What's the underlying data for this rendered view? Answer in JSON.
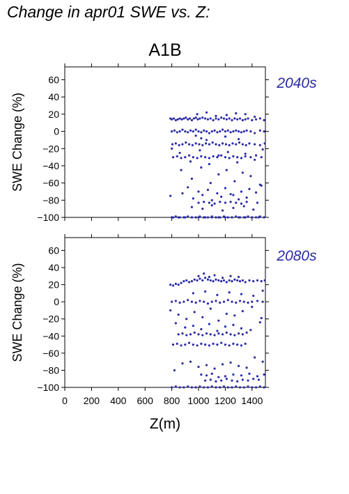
{
  "page": {
    "title": "Change in apr01 SWE vs. Z:"
  },
  "chart_data": {
    "type": "scatter",
    "scenario_title": "A1B",
    "xlabel": "Z(m)",
    "ylabel": "SWE Change (%)",
    "xlim": [
      0,
      1500
    ],
    "ylim": [
      -100,
      75
    ],
    "x_ticks": [
      0,
      200,
      400,
      600,
      800,
      1000,
      1200,
      1400
    ],
    "y_ticks": [
      -100,
      -80,
      -60,
      -40,
      -20,
      0,
      20,
      40,
      60
    ],
    "grid": false,
    "point_color": "#2a2aa8",
    "label_color": "#2a2aa8",
    "panels": [
      {
        "label": "2040s",
        "points_note": "clusters ~15, 0, -15, -30 and -100 %, scattered between -100 and 20 % for Z 790–1500 m",
        "series": [
          {
            "x": [
              790,
              800,
              815,
              830,
              845,
              860,
              875,
              890,
              905,
              920,
              935,
              950,
              965,
              980,
              995,
              1010,
              1030,
              1050,
              1070,
              1090,
              1110,
              1130,
              1150,
              1170,
              1190,
              1210,
              1230,
              1250,
              1270,
              1290,
              1310,
              1330,
              1350,
              1370,
              1400,
              1430,
              1460,
              1490,
              800,
              820,
              840,
              860,
              880,
              900,
              920,
              940,
              960,
              980,
              1000,
              1020,
              1040,
              1060,
              1080,
              1100,
              1120,
              1140,
              1160,
              1180,
              1200,
              1220,
              1240,
              1260,
              1280,
              1300,
              1320,
              1340,
              1360,
              1390,
              1420,
              1460,
              1490,
              805,
              830,
              855,
              880,
              905,
              930,
              955,
              980,
              1005,
              1030,
              1055,
              1080,
              1105,
              1130,
              1155,
              1180,
              1205,
              1230,
              1255,
              1280,
              1305,
              1330,
              1355,
              1380,
              1420,
              1460,
              1495,
              810,
              840,
              870,
              900,
              930,
              960,
              990,
              1020,
              1050,
              1080,
              1110,
              1140,
              1170,
              1200,
              1230,
              1260,
              1290,
              1320,
              1350,
              1390,
              1430,
              1470,
              800,
              830,
              860,
              890,
              920,
              950,
              980,
              1010,
              1040,
              1070,
              1100,
              1130,
              1160,
              1190,
              1220,
              1250,
              1280,
              1310,
              1340,
              1370,
              1400,
              1430,
              1460,
              1490,
              810,
              850,
              900,
              950,
              1000,
              1050,
              1100,
              1150,
              1200,
              1250,
              1300,
              1350,
              1400,
              1450,
              1000,
              1040,
              1080,
              1120,
              1160,
              1200,
              1240,
              1280,
              1320,
              1360,
              1440,
              870,
              950,
              1020,
              1090,
              1150,
              1210,
              1270,
              1330,
              1390,
              1460,
              920,
              1000,
              1070,
              1140,
              1200,
              1260,
              1320,
              1380,
              1470,
              790,
              880,
              960,
              1030,
              1100,
              1170,
              1240,
              1300,
              1360,
              1430,
              800,
              860,
              940,
              1010,
              1080,
              1150,
              1220,
              1290,
              1350,
              1420,
              1480,
              950,
              1030,
              1100,
              1180,
              1260,
              1340,
              1410,
              990,
              1060,
              1130,
              1210,
              1280,
              1350,
              1420,
              980,
              1020,
              1060,
              1200,
              1300
            ],
            "y": [
              15,
              14,
              15,
              13,
              14,
              15,
              14,
              15,
              16,
              14,
              15,
              13,
              15,
              16,
              14,
              15,
              16,
              15,
              14,
              15,
              13,
              15,
              14,
              16,
              15,
              14,
              15,
              13,
              15,
              14,
              15,
              13,
              14,
              15,
              13,
              14,
              15,
              13,
              0,
              1,
              -1,
              0,
              2,
              0,
              -1,
              1,
              0,
              2,
              0,
              -1,
              1,
              0,
              -2,
              0,
              1,
              -1,
              0,
              2,
              0,
              1,
              -1,
              0,
              1,
              0,
              -1,
              0,
              1,
              0,
              -2,
              1,
              0,
              -15,
              -14,
              -16,
              -15,
              -13,
              -15,
              -16,
              -14,
              -15,
              -16,
              -14,
              -15,
              -13,
              -15,
              -16,
              -14,
              -15,
              -16,
              -14,
              -15,
              -13,
              -15,
              -16,
              -14,
              -15,
              -16,
              -14,
              -30,
              -29,
              -31,
              -30,
              -28,
              -30,
              -31,
              -29,
              -30,
              -31,
              -29,
              -30,
              -28,
              -30,
              -31,
              -29,
              -30,
              -31,
              -29,
              -30,
              -28,
              -30,
              -100,
              -99,
              -100,
              -100,
              -99,
              -100,
              -100,
              -99,
              -100,
              -100,
              -99,
              -100,
              -100,
              -99,
              -100,
              -100,
              -99,
              -100,
              -100,
              -99,
              -100,
              -100,
              -99,
              -100,
              -100,
              -100,
              -100,
              -100,
              -100,
              -100,
              -100,
              -100,
              -100,
              -100,
              -100,
              -100,
              -100,
              -100,
              -83,
              -82,
              -83,
              -84,
              -82,
              -83,
              -82,
              -83,
              -84,
              -82,
              -83,
              -45,
              -55,
              -42,
              -60,
              -50,
              -45,
              -58,
              -48,
              -52,
              -62,
              -65,
              -70,
              -68,
              -72,
              -66,
              -74,
              -70,
              -67,
              -63,
              -75,
              -72,
              -78,
              -74,
              -80,
              -76,
              -73,
              -79,
              -77,
              -71,
              -20,
              -25,
              -35,
              -22,
              -38,
              -28,
              -24,
              -36,
              -26,
              -33,
              -21,
              -88,
              -90,
              -86,
              -92,
              -89,
              -87,
              -91,
              20,
              22,
              18,
              19,
              21,
              20,
              17,
              -5,
              -8,
              -10,
              -6,
              -9
            ]
          }
        ]
      },
      {
        "label": "2080s",
        "points_note": "clusters ~25, 0, -38, -50, -92 and -100 %, scattered between -100 and 33 % for Z 790–1500 m",
        "series": [
          {
            "x": [
              790,
              810,
              830,
              850,
              870,
              890,
              910,
              930,
              950,
              970,
              990,
              1010,
              1030,
              1050,
              1070,
              1090,
              1110,
              1130,
              1150,
              1170,
              1190,
              1210,
              1230,
              1250,
              1270,
              1290,
              1310,
              1330,
              1350,
              1380,
              1410,
              1440,
              1470,
              1495,
              800,
              830,
              860,
              890,
              920,
              950,
              980,
              1010,
              1040,
              1070,
              1100,
              1130,
              1160,
              1190,
              1220,
              1250,
              1280,
              1310,
              1340,
              1370,
              1400,
              1440,
              1480,
              850,
              880,
              910,
              940,
              970,
              1000,
              1030,
              1060,
              1090,
              1120,
              1150,
              1180,
              1210,
              1240,
              1270,
              1300,
              1330,
              1360,
              810,
              840,
              870,
              900,
              930,
              960,
              990,
              1020,
              1050,
              1080,
              1110,
              1140,
              1170,
              1200,
              1230,
              1260,
              1290,
              1320,
              1350,
              800,
              830,
              860,
              890,
              920,
              950,
              980,
              1010,
              1040,
              1070,
              1100,
              1130,
              1160,
              1190,
              1220,
              1250,
              1280,
              1310,
              1340,
              1370,
              1400,
              1430,
              1460,
              1490,
              1050,
              1090,
              1130,
              1170,
              1210,
              1250,
              1290,
              1330,
              1370,
              1410,
              1450,
              1020,
              1060,
              1100,
              1150,
              1200,
              1260,
              1320,
              1380,
              1440,
              1490,
              820,
              880,
              940,
              1000,
              1060,
              1120,
              1180,
              1240,
              1300,
              1360,
              1420,
              1480,
              790,
              850,
              910,
              970,
              1030,
              1090,
              1150,
              1210,
              1270,
              1330,
              1400,
              1470,
              830,
              900,
              960,
              1020,
              1080,
              1140,
              1200,
              1260,
              1320,
              1390,
              1460,
              1000,
              1040,
              1080,
              1120,
              1180,
              1240,
              1300,
              960,
              1050,
              1140,
              1230,
              1320,
              1410,
              1480
            ],
            "y": [
              20,
              19,
              21,
              20,
              22,
              24,
              25,
              23,
              24,
              26,
              25,
              27,
              25,
              28,
              26,
              25,
              24,
              26,
              25,
              24,
              25,
              23,
              25,
              24,
              26,
              25,
              24,
              25,
              23,
              25,
              24,
              25,
              24,
              25,
              0,
              1,
              -1,
              0,
              2,
              0,
              -1,
              1,
              0,
              -2,
              0,
              1,
              -1,
              0,
              2,
              0,
              -1,
              1,
              0,
              -1,
              0,
              1,
              0,
              -38,
              -37,
              -39,
              -38,
              -36,
              -38,
              -39,
              -37,
              -38,
              -39,
              -37,
              -38,
              -36,
              -38,
              -39,
              -37,
              -38,
              -36,
              -50,
              -49,
              -51,
              -50,
              -48,
              -50,
              -51,
              -49,
              -50,
              -51,
              -49,
              -50,
              -48,
              -50,
              -51,
              -49,
              -50,
              -51,
              -49,
              -100,
              -99,
              -100,
              -100,
              -99,
              -100,
              -100,
              -99,
              -100,
              -100,
              -99,
              -100,
              -100,
              -99,
              -100,
              -100,
              -99,
              -100,
              -100,
              -99,
              -100,
              -100,
              -99,
              -100,
              -92,
              -91,
              -93,
              -92,
              -90,
              -92,
              -93,
              -91,
              -92,
              -90,
              -91,
              -85,
              -86,
              -84,
              -88,
              -87,
              -85,
              -86,
              -84,
              -87,
              -85,
              -80,
              -72,
              -70,
              -76,
              -74,
              -78,
              -73,
              -71,
              -75,
              -77,
              -65,
              -70,
              -10,
              -15,
              -20,
              -12,
              -18,
              -8,
              -22,
              -14,
              -16,
              -11,
              -6,
              -19,
              -25,
              -30,
              -28,
              -32,
              -26,
              -34,
              -29,
              -27,
              -31,
              -33,
              -24,
              30,
              33,
              29,
              31,
              28,
              30,
              29,
              10,
              12,
              8,
              11,
              9,
              7,
              13
            ]
          }
        ]
      }
    ]
  }
}
